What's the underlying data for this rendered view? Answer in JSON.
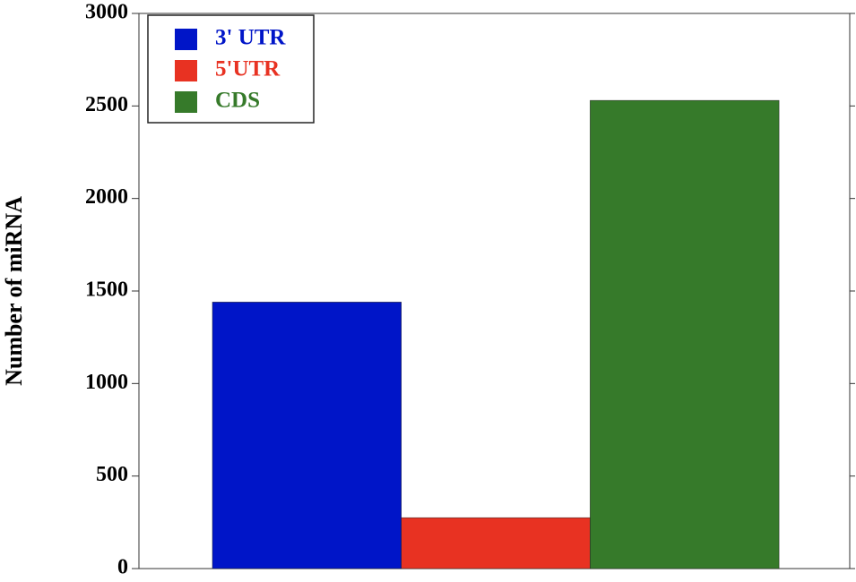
{
  "chart_data": {
    "type": "bar",
    "y_label": "Number of miRNA",
    "series": [
      {
        "name": "3' UTR",
        "color": "#0015c8",
        "values": [
          1440
        ]
      },
      {
        "name": "5'UTR",
        "color": "#e83222",
        "values": [
          275
        ]
      },
      {
        "name": "CDS",
        "color": "#367a2a",
        "values": [
          2530
        ]
      }
    ],
    "ylim": [
      0,
      3000
    ],
    "yticks": [
      0,
      500,
      1000,
      1500,
      2000,
      2500,
      3000
    ],
    "legend": "upper-left"
  }
}
